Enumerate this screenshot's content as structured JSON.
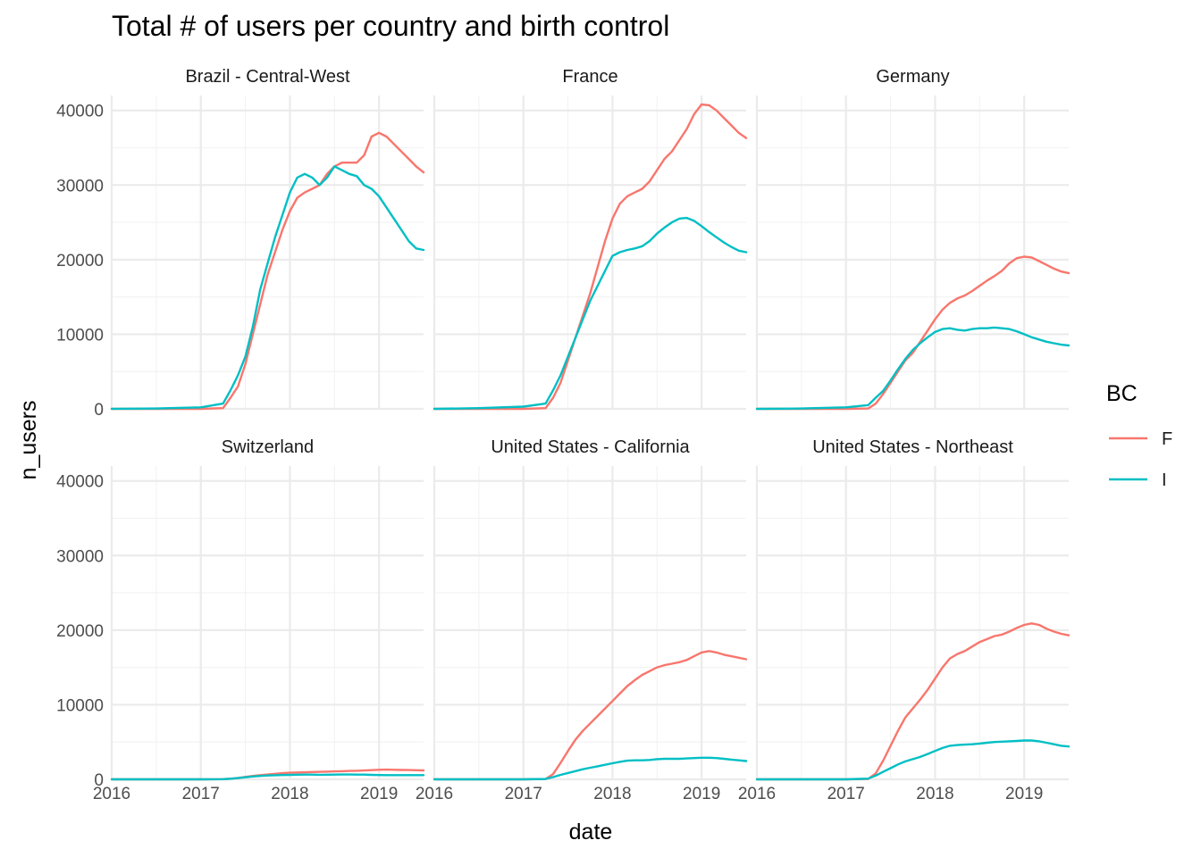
{
  "chart_data": {
    "type": "line",
    "title": "Total # of users per country and birth control",
    "xlabel": "date",
    "ylabel": "n_users",
    "xlim": [
      "2016-01-01",
      "2019-07-01"
    ],
    "ylim": [
      0,
      42000
    ],
    "x_ticks": [
      "2016",
      "2017",
      "2018",
      "2019"
    ],
    "y_ticks": [
      0,
      10000,
      20000,
      30000,
      40000
    ],
    "grid": true,
    "legend": {
      "title": "BC",
      "placement": "right",
      "entries": [
        {
          "label": "F",
          "color": "#F8766D"
        },
        {
          "label": "I",
          "color": "#00BFC4"
        }
      ]
    },
    "dates": [
      "2016-01-01",
      "2016-07-01",
      "2017-01-01",
      "2017-04-01",
      "2017-05-01",
      "2017-06-01",
      "2017-07-01",
      "2017-08-01",
      "2017-09-01",
      "2017-10-01",
      "2017-11-01",
      "2017-12-01",
      "2018-01-01",
      "2018-02-01",
      "2018-03-01",
      "2018-04-01",
      "2018-05-01",
      "2018-06-01",
      "2018-07-01",
      "2018-08-01",
      "2018-09-01",
      "2018-10-01",
      "2018-11-01",
      "2018-12-01",
      "2019-01-01",
      "2019-02-01",
      "2019-03-01",
      "2019-04-01",
      "2019-05-01",
      "2019-06-01",
      "2019-07-01"
    ],
    "panels": [
      {
        "name": "Brazil - Central-West",
        "series": [
          {
            "name": "F",
            "values": [
              0,
              0,
              0,
              100,
              1500,
              3000,
              6000,
              10000,
              14000,
              18000,
              21000,
              24000,
              26500,
              28300,
              29000,
              29500,
              30000,
              31500,
              32500,
              33000,
              33000,
              33000,
              34000,
              36500,
              37000,
              36500,
              35500,
              34500,
              33500,
              32500,
              31700
            ]
          },
          {
            "name": "I",
            "values": [
              0,
              50,
              200,
              700,
              2500,
              4500,
              7000,
              11000,
              16000,
              19500,
              23000,
              26000,
              29000,
              31000,
              31500,
              31000,
              30000,
              31000,
              32500,
              32000,
              31500,
              31200,
              30000,
              29500,
              28500,
              27000,
              25500,
              24000,
              22500,
              21500,
              21300
            ]
          }
        ]
      },
      {
        "name": "France",
        "series": [
          {
            "name": "F",
            "values": [
              0,
              0,
              0,
              100,
              1500,
              3500,
              6500,
              9500,
              12500,
              15500,
              19000,
              22500,
              25500,
              27500,
              28500,
              29000,
              29500,
              30500,
              32000,
              33500,
              34500,
              36000,
              37500,
              39500,
              40800,
              40700,
              40000,
              39000,
              38000,
              37000,
              36300
            ]
          },
          {
            "name": "I",
            "values": [
              0,
              100,
              300,
              700,
              2500,
              4500,
              7000,
              9500,
              12000,
              14500,
              16500,
              18500,
              20500,
              21000,
              21300,
              21500,
              21800,
              22500,
              23500,
              24300,
              25000,
              25500,
              25600,
              25200,
              24500,
              23700,
              23000,
              22300,
              21700,
              21200,
              21000
            ]
          }
        ]
      },
      {
        "name": "Germany",
        "series": [
          {
            "name": "F",
            "values": [
              0,
              0,
              0,
              50,
              700,
              2000,
              3500,
              5000,
              6500,
              7500,
              9000,
              10500,
              12000,
              13300,
              14200,
              14800,
              15200,
              15800,
              16500,
              17200,
              17800,
              18500,
              19500,
              20200,
              20400,
              20300,
              19800,
              19300,
              18800,
              18400,
              18200
            ]
          },
          {
            "name": "I",
            "values": [
              0,
              50,
              200,
              500,
              1500,
              2400,
              3800,
              5300,
              6700,
              7900,
              8800,
              9600,
              10300,
              10700,
              10800,
              10600,
              10500,
              10700,
              10800,
              10800,
              10900,
              10800,
              10700,
              10400,
              10000,
              9600,
              9300,
              9000,
              8800,
              8600,
              8500
            ]
          }
        ]
      },
      {
        "name": "Switzerland",
        "series": [
          {
            "name": "F",
            "values": [
              0,
              0,
              0,
              20,
              80,
              180,
              320,
              450,
              560,
              650,
              740,
              820,
              880,
              920,
              950,
              980,
              1000,
              1030,
              1060,
              1090,
              1120,
              1150,
              1190,
              1230,
              1280,
              1300,
              1280,
              1260,
              1240,
              1220,
              1200
            ]
          },
          {
            "name": "I",
            "values": [
              0,
              0,
              0,
              20,
              80,
              170,
              280,
              380,
              460,
              510,
              550,
              580,
              600,
              620,
              640,
              630,
              610,
              620,
              640,
              650,
              650,
              640,
              630,
              600,
              580,
              560,
              560,
              560,
              560,
              560,
              560
            ]
          }
        ]
      },
      {
        "name": "United States - California",
        "series": [
          {
            "name": "F",
            "values": [
              0,
              0,
              0,
              50,
              700,
              2200,
              3800,
              5300,
              6500,
              7500,
              8500,
              9500,
              10500,
              11500,
              12500,
              13300,
              14000,
              14500,
              15000,
              15300,
              15500,
              15700,
              16000,
              16500,
              17000,
              17200,
              17000,
              16700,
              16500,
              16300,
              16100
            ]
          },
          {
            "name": "I",
            "values": [
              0,
              0,
              0,
              50,
              300,
              600,
              850,
              1100,
              1350,
              1550,
              1750,
              1950,
              2150,
              2350,
              2500,
              2550,
              2550,
              2600,
              2700,
              2750,
              2750,
              2750,
              2800,
              2850,
              2900,
              2900,
              2850,
              2750,
              2650,
              2550,
              2450
            ]
          }
        ]
      },
      {
        "name": "United States - Northeast",
        "series": [
          {
            "name": "F",
            "values": [
              0,
              0,
              0,
              50,
              800,
              2500,
              4500,
              6500,
              8300,
              9500,
              10700,
              12000,
              13500,
              15000,
              16200,
              16800,
              17200,
              17800,
              18400,
              18800,
              19200,
              19400,
              19800,
              20300,
              20700,
              20900,
              20700,
              20200,
              19800,
              19500,
              19300
            ]
          },
          {
            "name": "I",
            "values": [
              0,
              0,
              0,
              100,
              500,
              1000,
              1500,
              2000,
              2400,
              2700,
              3000,
              3400,
              3800,
              4200,
              4500,
              4600,
              4650,
              4700,
              4800,
              4900,
              5000,
              5050,
              5100,
              5150,
              5200,
              5200,
              5100,
              4900,
              4700,
              4500,
              4400
            ]
          }
        ]
      }
    ]
  }
}
